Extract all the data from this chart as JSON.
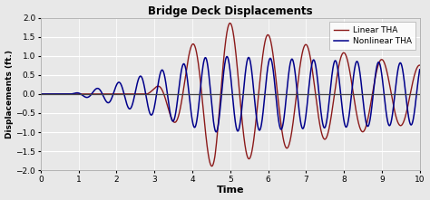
{
  "title": "Bridge Deck Displacements",
  "xlabel": "Time",
  "ylabel": "Displacements (ft.)",
  "xlim": [
    0,
    10
  ],
  "ylim": [
    -2,
    2
  ],
  "yticks": [
    -2,
    -1.5,
    -1,
    -0.5,
    0,
    0.5,
    1,
    1.5,
    2
  ],
  "xticks": [
    0,
    1,
    2,
    3,
    4,
    5,
    6,
    7,
    8,
    9,
    10
  ],
  "linear_color": "#8B1A1A",
  "nonlinear_color": "#00008B",
  "background_color": "#e8e8e8",
  "plot_bg_color": "#e8e8e8",
  "legend_labels": [
    "Linear THA",
    "Nonlinear THA"
  ],
  "grid_color": "#ffffff",
  "t_start": 0,
  "t_end": 10,
  "n_points": 3000
}
